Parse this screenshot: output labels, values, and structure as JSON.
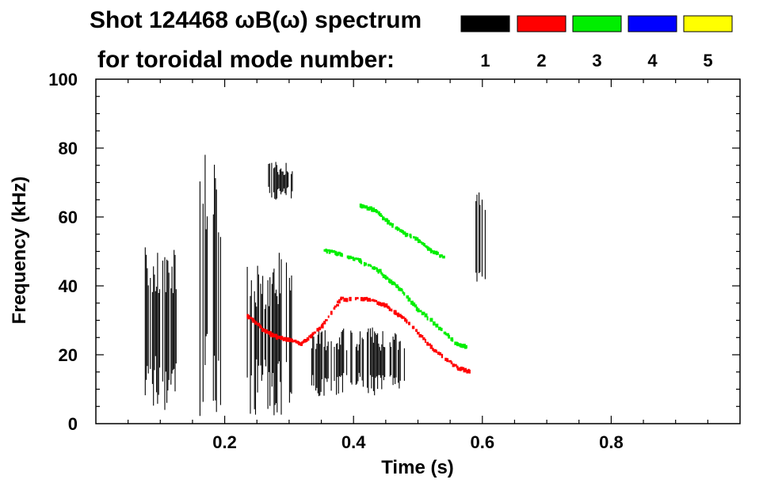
{
  "chart_data": {
    "type": "heatmap",
    "title_line1": "Shot 124468 ωB(ω) spectrum",
    "title_line2": "for toroidal mode number:",
    "xlabel": "Time (s)",
    "ylabel": "Frequency (kHz)",
    "xlim": [
      0.0,
      1.0
    ],
    "ylim": [
      0,
      100
    ],
    "x_ticks": [
      {
        "value": 0.2,
        "label": "0.2"
      },
      {
        "value": 0.4,
        "label": "0.4"
      },
      {
        "value": 0.6,
        "label": "0.6"
      },
      {
        "value": 0.8,
        "label": "0.8"
      }
    ],
    "y_ticks": [
      {
        "value": 0,
        "label": "0"
      },
      {
        "value": 20,
        "label": "20"
      },
      {
        "value": 40,
        "label": "40"
      },
      {
        "value": 60,
        "label": "60"
      },
      {
        "value": 80,
        "label": "80"
      },
      {
        "value": 100,
        "label": "100"
      }
    ],
    "grid": false,
    "legend_placement": "top-right",
    "legend": [
      {
        "label": "1",
        "color": "#000000"
      },
      {
        "label": "2",
        "color": "#ff0000"
      },
      {
        "label": "3",
        "color": "#00ee00"
      },
      {
        "label": "4",
        "color": "#0000ff"
      },
      {
        "label": "5",
        "color": "#ffff00"
      }
    ],
    "series": [
      {
        "mode": "1",
        "color": "#000000",
        "regions": [
          {
            "t": [
              0.075,
              0.125
            ],
            "f": [
              3,
              55
            ]
          },
          {
            "t": [
              0.16,
              0.195
            ],
            "f": [
              0,
              82
            ]
          },
          {
            "t": [
              0.235,
              0.305
            ],
            "f": [
              2,
              50
            ]
          },
          {
            "t": [
              0.265,
              0.305
            ],
            "f": [
              65,
              76
            ]
          },
          {
            "t": [
              0.335,
              0.48
            ],
            "f": [
              8,
              28
            ]
          },
          {
            "t": [
              0.59,
              0.605
            ],
            "f": [
              40,
              68
            ]
          }
        ]
      },
      {
        "mode": "2",
        "color": "#ff0000",
        "points": [
          [
            0.235,
            31
          ],
          [
            0.26,
            27
          ],
          [
            0.28,
            25
          ],
          [
            0.3,
            24
          ],
          [
            0.32,
            23
          ],
          [
            0.35,
            28
          ],
          [
            0.38,
            36
          ],
          [
            0.42,
            36
          ],
          [
            0.45,
            34
          ],
          [
            0.48,
            30
          ],
          [
            0.52,
            22
          ],
          [
            0.56,
            16
          ],
          [
            0.58,
            15
          ]
        ]
      },
      {
        "mode": "3",
        "color": "#00ee00",
        "points": [
          [
            0.355,
            50
          ],
          [
            0.38,
            49
          ],
          [
            0.41,
            47
          ],
          [
            0.44,
            44
          ],
          [
            0.47,
            39
          ],
          [
            0.5,
            33
          ],
          [
            0.53,
            28
          ],
          [
            0.56,
            23
          ],
          [
            0.575,
            22
          ]
        ]
      },
      {
        "mode": "3",
        "color": "#00ee00",
        "points": [
          [
            0.41,
            63
          ],
          [
            0.43,
            62
          ],
          [
            0.45,
            59
          ],
          [
            0.47,
            56
          ],
          [
            0.5,
            53
          ],
          [
            0.52,
            50
          ],
          [
            0.54,
            48
          ]
        ]
      }
    ]
  }
}
